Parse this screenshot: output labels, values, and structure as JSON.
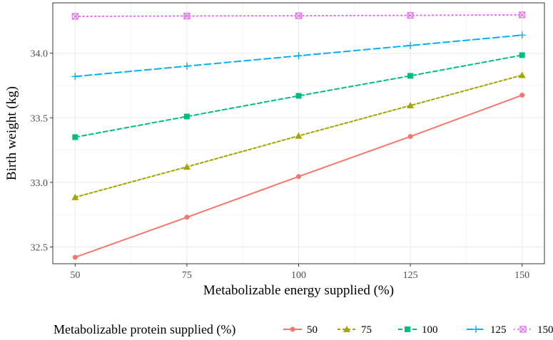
{
  "chart_data": {
    "type": "line",
    "xlabel": "Metabolizable energy supplied (%)",
    "ylabel": "Birth weight (kg)",
    "x": [
      50,
      75,
      100,
      125,
      150
    ],
    "x_ticks": [
      "50",
      "75",
      "100",
      "125",
      "150"
    ],
    "y_ticks": [
      "32.5",
      "33.0",
      "33.5",
      "34.0"
    ],
    "xlim": [
      45,
      155
    ],
    "ylim": [
      32.37,
      34.39
    ],
    "grid": true,
    "legend": {
      "title": "Metabolizable protein supplied (%)",
      "position": "bottom"
    },
    "series": [
      {
        "name": "50",
        "color": "#F8766D",
        "marker": "circle",
        "dash": "solid",
        "values": [
          32.42,
          32.73,
          33.045,
          33.355,
          33.675
        ]
      },
      {
        "name": "75",
        "color": "#A3A500",
        "marker": "triangle",
        "dash": "short",
        "values": [
          32.885,
          33.12,
          33.36,
          33.595,
          33.83
        ]
      },
      {
        "name": "100",
        "color": "#00BF7D",
        "marker": "square",
        "dash": "medium",
        "values": [
          33.35,
          33.51,
          33.67,
          33.825,
          33.985
        ]
      },
      {
        "name": "125",
        "color": "#00B0F6",
        "marker": "plus",
        "dash": "long",
        "values": [
          33.82,
          33.9,
          33.98,
          34.06,
          34.14
        ]
      },
      {
        "name": "150",
        "color": "#E76BF3",
        "marker": "boxcross",
        "dash": "dotted",
        "values": [
          34.285,
          34.288,
          34.29,
          34.293,
          34.297
        ]
      }
    ]
  }
}
